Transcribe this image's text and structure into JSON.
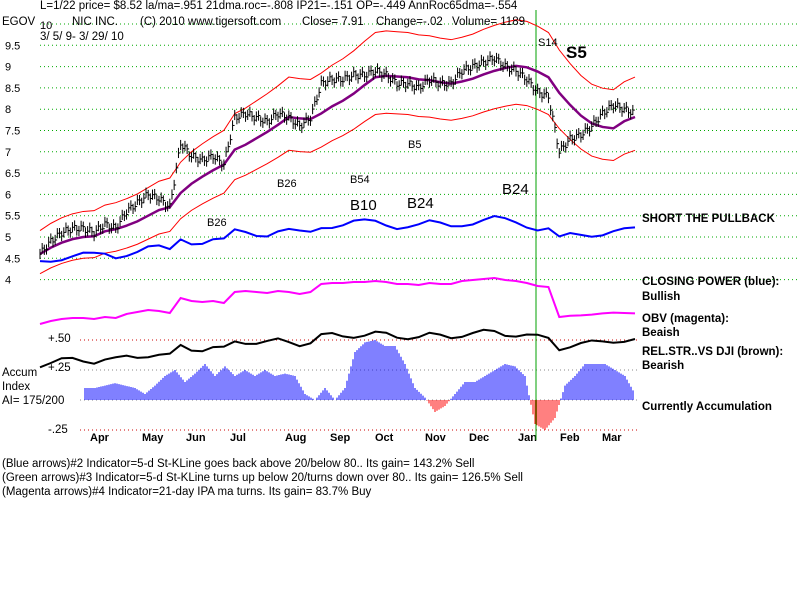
{
  "header": {
    "line1": "L=1/22  price= $8.52  la/ma=.951 21dma.roc=-.808 IP21=-.151 OP=-.449 AnnRoc65dma=-.554",
    "ticker": "EGOV",
    "company": "NIC INC.",
    "copyright": "(C) 2010 www.tigersoft.com",
    "close": "Close=  7.91",
    "change": "Change=-.02",
    "volume": "Volume= 1189",
    "range": "3/ 5/ 9- 3/ 29/ 10"
  },
  "right_labels": {
    "short": "SHORT THE PULLBACK",
    "cp": "CLOSING POWER (blue):",
    "cp_v": "Bullish",
    "obv": "OBV (magenta):",
    "obv_v": "Beaish",
    "rs": "REL.STR..VS DJI (brown):",
    "rs_v": "Bearish",
    "acc": "Currently Accumulation"
  },
  "left_labels": {
    "accum": "Accum",
    "index": "Index",
    "ai": "AI= 175/200",
    "p50": "+.50",
    "p25": "+.25",
    "m25": "-.25"
  },
  "signals": [
    "B26",
    "B26",
    "B54",
    "B5",
    "B10",
    "B24",
    "B24",
    "S14",
    "S5"
  ],
  "footer": [
    "(Blue arrows)#2 Indicator=5-d St-KLine goes back above 20/below 80.. Its gain= 143.2% Sell",
    "(Green arrows)#3 Indicator=5-d St-KLine turns up below 20/turns down over 80.. Its gain= 126.5% Sell",
    "(Magenta arrows)#4 Indicator=21-day IPA ma turns. Its gain= 83.7% Buy"
  ],
  "chart_data": {
    "type": "line",
    "title": "NIC INC. (EGOV)",
    "x_ticks": [
      "Apr",
      "May",
      "Jun",
      "Jul",
      "Aug",
      "Sep",
      "Oct",
      "Nov",
      "Dec",
      "Jan",
      "Feb",
      "Mar"
    ],
    "y_ticks": [
      "10",
      "9.5",
      "9",
      "8.5",
      "8",
      "7.5",
      "7",
      "6.5",
      "6",
      "5.5",
      "5",
      "4.5",
      "4"
    ],
    "ylim": [
      4,
      10
    ],
    "price_weekly": [
      4.6,
      4.9,
      5.1,
      5.2,
      5.2,
      5.1,
      5.3,
      5.2,
      5.6,
      5.8,
      6.0,
      5.9,
      5.7,
      7.2,
      6.9,
      6.8,
      6.9,
      6.7,
      7.8,
      7.9,
      7.8,
      7.7,
      7.9,
      7.8,
      7.6,
      7.8,
      8.6,
      8.7,
      8.7,
      8.8,
      8.8,
      8.9,
      8.8,
      8.6,
      8.6,
      8.5,
      8.7,
      8.6,
      8.6,
      8.9,
      9.0,
      9.1,
      9.2,
      9.0,
      8.9,
      8.7,
      8.4,
      8.3,
      7.0,
      7.3,
      7.4,
      7.6,
      7.9,
      8.1,
      8.0,
      7.9
    ],
    "accum_weekly": [
      0.1,
      0.1,
      0.12,
      0.14,
      0.12,
      0.1,
      0.05,
      0.12,
      0.2,
      0.25,
      0.15,
      0.22,
      0.3,
      0.2,
      0.28,
      0.2,
      0.25,
      0.2,
      0.25,
      0.2,
      0.22,
      0.2,
      0.05,
      0.0,
      0.1,
      0.0,
      0.1,
      0.4,
      0.48,
      0.5,
      0.45,
      0.45,
      0.3,
      0.1,
      0.02,
      -0.1,
      -0.05,
      0.05,
      0.15,
      0.15,
      0.2,
      0.25,
      0.3,
      0.28,
      0.2,
      -0.2,
      -0.25,
      -0.15,
      0.12,
      0.2,
      0.3,
      0.3,
      0.3,
      0.25,
      0.2,
      0.05
    ],
    "colors": {
      "price": "#000000",
      "ma": "#800080",
      "bands": "#ff0000",
      "cp": "#0000ff",
      "obv": "#ff00ff",
      "acc_pos": "#0000ff",
      "acc_neg": "#ff0000",
      "signal_line": "#00a000"
    }
  }
}
